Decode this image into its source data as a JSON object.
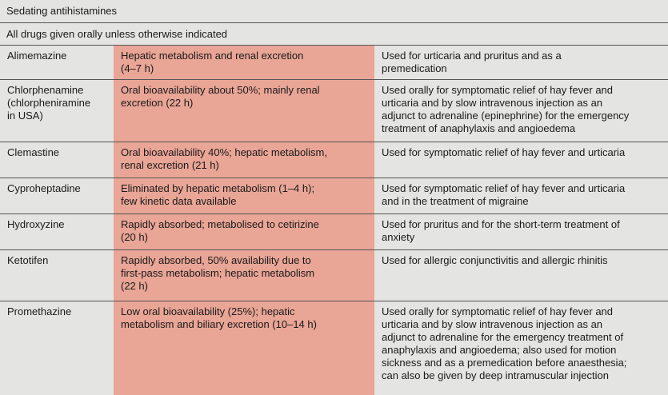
{
  "header": {
    "title": "Sedating antihistamines",
    "note": "All drugs given orally unless otherwise indicated"
  },
  "table": {
    "rows": [
      [
        [
          "Alimemazine"
        ],
        [
          "Hepatic metabolism and renal excretion",
          "(4–7 h)"
        ],
        [
          "Used for urticaria and pruritus and as a",
          "premedication"
        ]
      ],
      [
        [
          "Chlorphenamine",
          "(chlorpheniramine",
          "in USA)"
        ],
        [
          "Oral bioavailability about 50%; mainly renal",
          "excretion (22 h)"
        ],
        [
          "Used orally for symptomatic relief of hay fever and",
          "urticaria and by slow intravenous injection as an",
          "adjunct to adrenaline (epinephrine) for the emergency",
          "treatment of anaphylaxis and angioedema"
        ]
      ],
      [
        [
          "Clemastine"
        ],
        [
          "Oral bioavailability 40%; hepatic metabolism,",
          "renal excretion (21 h)"
        ],
        [
          "Used for symptomatic relief of hay fever and urticaria"
        ]
      ],
      [
        [
          "Cyproheptadine"
        ],
        [
          "Eliminated by hepatic metabolism (1–4 h);",
          "few kinetic data available"
        ],
        [
          "Used for symptomatic relief of hay fever and urticaria",
          "and in the treatment of migraine"
        ]
      ],
      [
        [
          "Hydroxyzine"
        ],
        [
          "Rapidly absorbed; metabolised to cetirizine",
          "(20 h)"
        ],
        [
          "Used for pruritus and for the short-term treatment of",
          "anxiety"
        ]
      ],
      [
        [
          "Ketotifen"
        ],
        [
          "Rapidly absorbed, 50% availability due to",
          "first-pass metabolism; hepatic metabolism",
          "(22 h)"
        ],
        [
          "Used for allergic conjunctivitis and allergic rhinitis"
        ]
      ],
      [
        [
          "Promethazine"
        ],
        [
          "Low oral bioavailability (25%); hepatic",
          "metabolism and biliary excretion (10–14 h)"
        ],
        [
          "Used orally for symptomatic relief of hay fever and",
          "urticaria and by slow intravenous injection as an",
          "adjunct to adrenaline for the emergency treatment of",
          "anaphylaxis and angioedema; also used for motion",
          "sickness and as a premedication before anaesthesia;",
          "can also be given by deep intramuscular injection"
        ]
      ]
    ]
  }
}
